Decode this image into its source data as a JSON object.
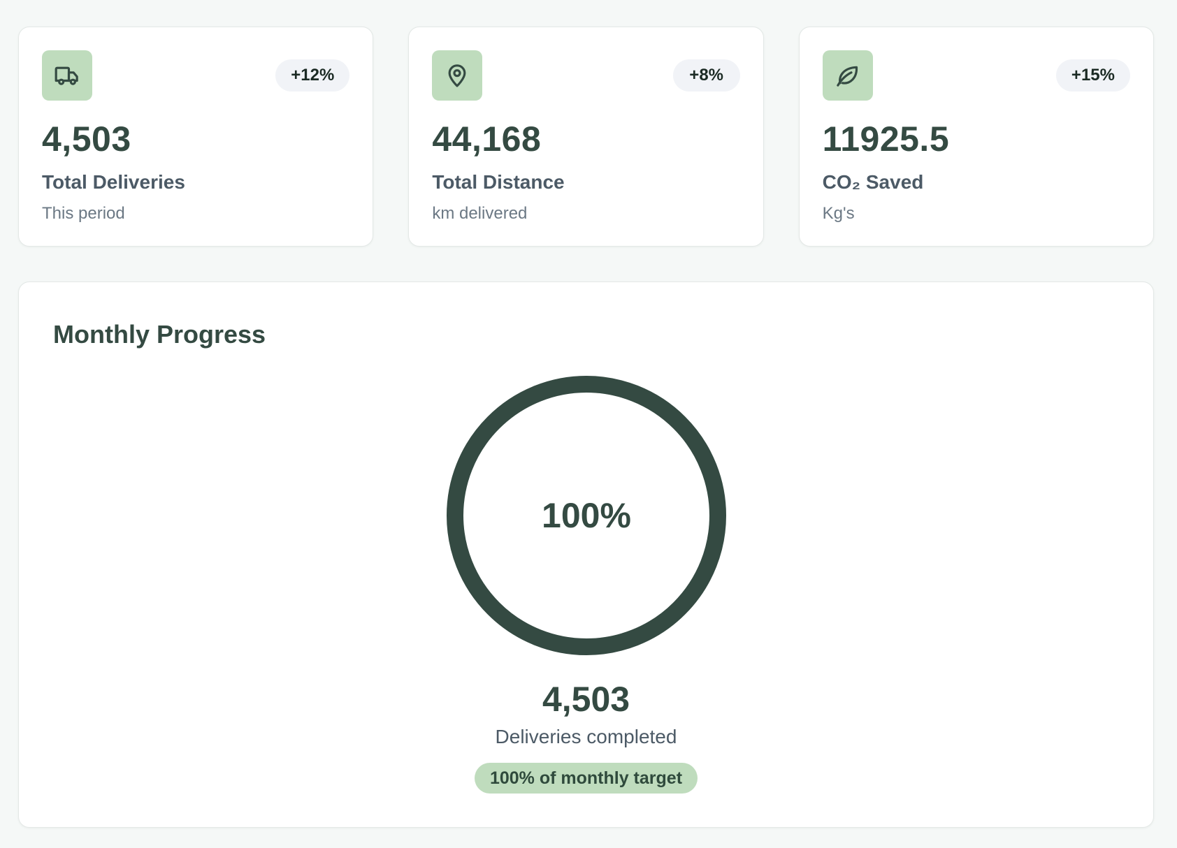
{
  "stats": [
    {
      "icon": "truck-icon",
      "change": "+12%",
      "value": "4,503",
      "label": "Total Deliveries",
      "sub": "This period"
    },
    {
      "icon": "map-pin-icon",
      "change": "+8%",
      "value": "44,168",
      "label": "Total Distance",
      "sub": "km delivered"
    },
    {
      "icon": "leaf-icon",
      "change": "+15%",
      "value": "11925.5",
      "label": "CO₂ Saved",
      "sub": "Kg's"
    }
  ],
  "progress": {
    "title": "Monthly Progress",
    "percent_label": "100%",
    "percent_value": 100,
    "completed_value": "4,503",
    "completed_label": "Deliveries completed",
    "target_badge": "100% of monthly target"
  },
  "colors": {
    "accent_dark": "#344a42",
    "accent_light": "#bfdcbd",
    "ring_track": "#e3e8e6"
  }
}
